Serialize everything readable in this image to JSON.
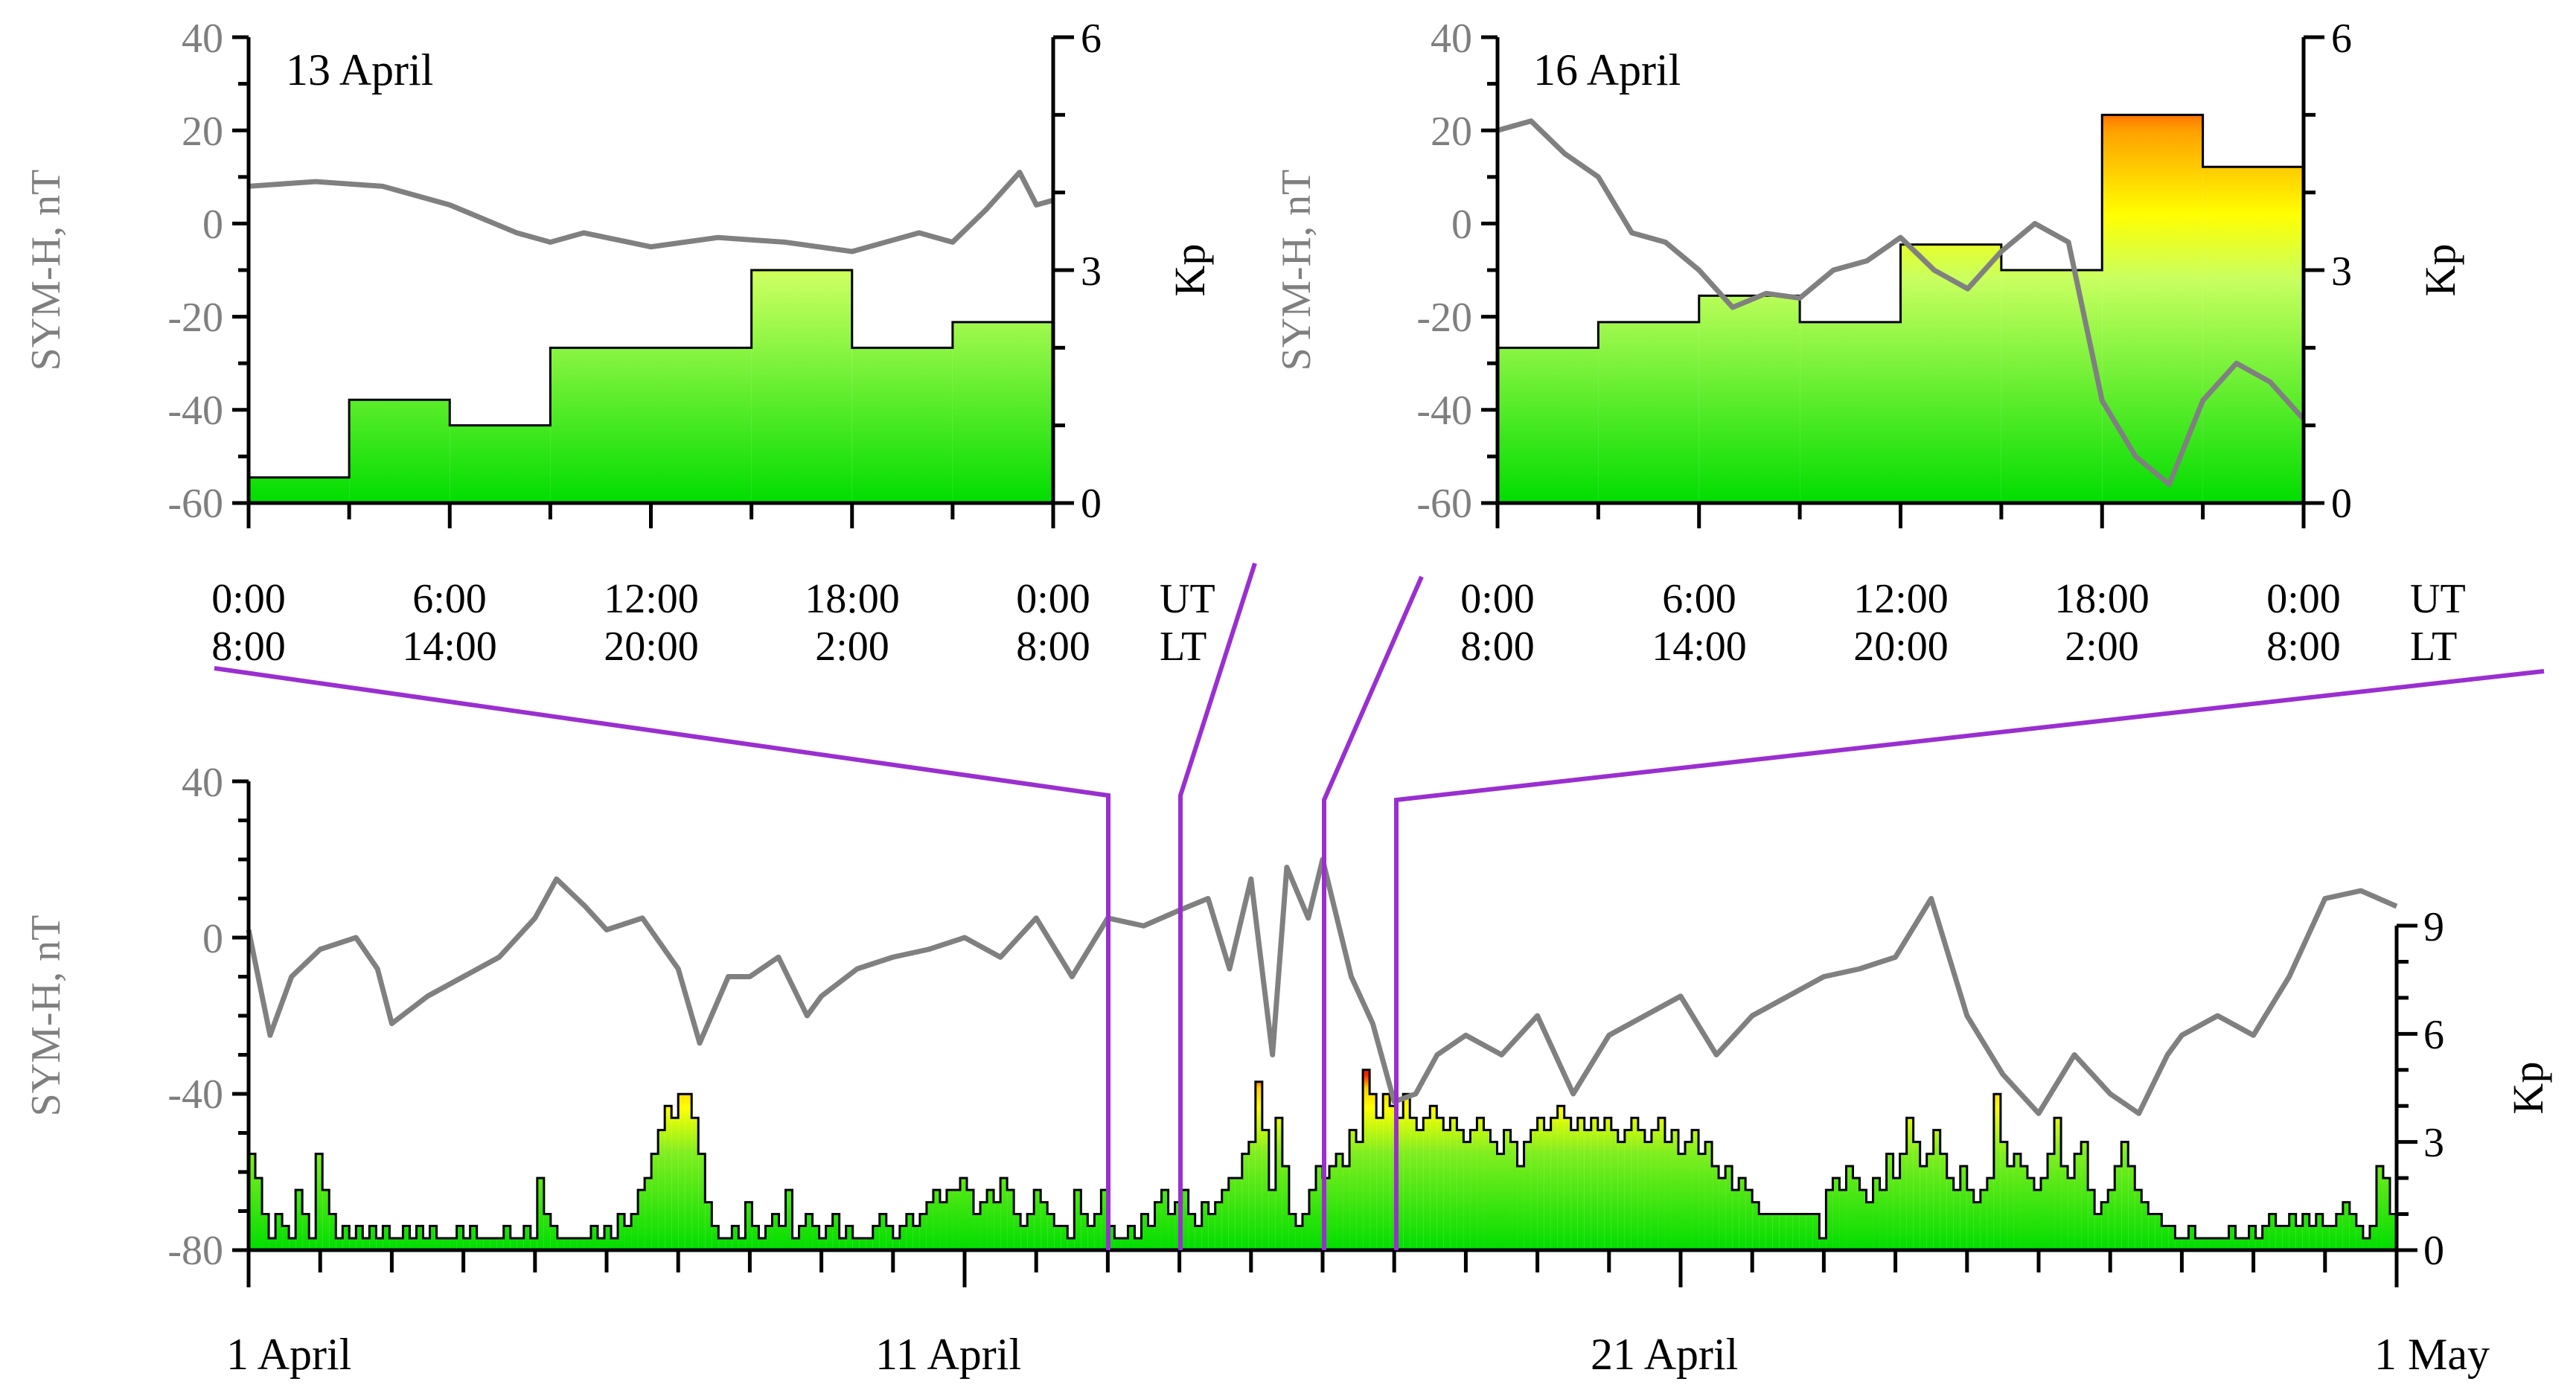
{
  "chart_data": [
    {
      "id": "panel-13-april",
      "type": "line+step-area",
      "title": "13 April",
      "ylabel_left": "SYM-H, nT",
      "ylabel_right": "Kp",
      "ylim_left": [
        -60,
        40
      ],
      "ylim_right": [
        0,
        6
      ],
      "yticks_left": [
        "40",
        "20",
        "0",
        "-20",
        "-40",
        "-60"
      ],
      "yticks_right": [
        "6",
        "3",
        "0"
      ],
      "x_ticks_ut": [
        "0:00",
        "6:00",
        "12:00",
        "18:00",
        "0:00"
      ],
      "x_ticks_lt": [
        "8:00",
        "14:00",
        "20:00",
        "2:00",
        "8:00"
      ],
      "x_unit_ut": "UT",
      "x_unit_lt": "LT",
      "kp_interval_hours": 3,
      "kp_values": [
        0.33,
        1.33,
        1.0,
        2.0,
        2.0,
        3.0,
        2.0,
        2.33
      ],
      "symh_hours": [
        0,
        2,
        4,
        6,
        8,
        9,
        10,
        12,
        14,
        16,
        18,
        19,
        20,
        21,
        22,
        23,
        23.5,
        24
      ],
      "symh_values": [
        8,
        9,
        8,
        4,
        -2,
        -4,
        -2,
        -5,
        -3,
        -4,
        -6,
        -4,
        -2,
        -4,
        3,
        11,
        4,
        5
      ]
    },
    {
      "id": "panel-16-april",
      "type": "line+step-area",
      "title": "16 April",
      "ylabel_left": "SYM-H, nT",
      "ylabel_right": "Kp",
      "ylim_left": [
        -60,
        40
      ],
      "ylim_right": [
        0,
        6
      ],
      "yticks_left": [
        "40",
        "20",
        "0",
        "-20",
        "-40",
        "-60"
      ],
      "yticks_right": [
        "6",
        "3",
        "0"
      ],
      "x_ticks_ut": [
        "0:00",
        "6:00",
        "12:00",
        "18:00",
        "0:00"
      ],
      "x_ticks_lt": [
        "8:00",
        "14:00",
        "20:00",
        "2:00",
        "8:00"
      ],
      "x_unit_ut": "UT",
      "x_unit_lt": "LT",
      "kp_interval_hours": 3,
      "kp_values": [
        2.0,
        2.33,
        2.67,
        2.33,
        3.33,
        3.0,
        5.0,
        4.33
      ],
      "symh_hours": [
        0,
        1,
        2,
        3,
        4,
        5,
        6,
        7,
        8,
        9,
        10,
        11,
        12,
        13,
        14,
        15,
        16,
        17,
        18,
        19,
        20,
        21,
        22,
        23,
        24
      ],
      "symh_values": [
        20,
        22,
        15,
        10,
        -2,
        -4,
        -10,
        -18,
        -15,
        -16,
        -10,
        -8,
        -3,
        -10,
        -14,
        -6,
        0,
        -4,
        -38,
        -50,
        -56,
        -38,
        -30,
        -34,
        -42
      ]
    },
    {
      "id": "panel-april",
      "type": "line+step-area",
      "ylabel_left": "SYM-H, nT",
      "ylabel_right": "Kp",
      "ylim_left": [
        -80,
        40
      ],
      "ylim_right": [
        0,
        9
      ],
      "yticks_left": [
        "40",
        "0",
        "-40",
        "-80"
      ],
      "yticks_right": [
        "9",
        "6",
        "3",
        "0"
      ],
      "x_day_labels": [
        "1 April",
        "11 April",
        "21 April",
        "1 May"
      ],
      "x_range_days": [
        0,
        30
      ],
      "zoom_days": [
        12,
        13,
        15,
        16
      ],
      "kp_values": [
        2.67,
        2.0,
        1.0,
        0.33,
        1.0,
        0.67,
        0.33,
        1.67,
        1.0,
        0.33,
        2.67,
        1.67,
        1.0,
        0.33,
        0.67,
        0.33,
        0.67,
        0.33,
        0.67,
        0.33,
        0.67,
        0.33,
        0.33,
        0.67,
        0.33,
        0.67,
        0.33,
        0.67,
        0.33,
        0.33,
        0.33,
        0.67,
        0.33,
        0.67,
        0.33,
        0.33,
        0.33,
        0.33,
        0.67,
        0.33,
        0.33,
        0.67,
        0.33,
        2.0,
        1.0,
        0.67,
        0.33,
        0.33,
        0.33,
        0.33,
        0.33,
        0.67,
        0.33,
        0.67,
        0.33,
        1.0,
        0.67,
        1.0,
        1.67,
        2.0,
        2.67,
        3.33,
        4.0,
        3.67,
        4.33,
        4.33,
        3.67,
        2.67,
        1.33,
        0.67,
        0.33,
        0.33,
        0.67,
        0.33,
        1.33,
        0.67,
        0.33,
        0.67,
        1.0,
        0.67,
        1.67,
        0.33,
        0.67,
        1.0,
        0.67,
        0.33,
        0.67,
        1.0,
        0.33,
        0.67,
        0.33,
        0.33,
        0.33,
        0.67,
        1.0,
        0.67,
        0.33,
        0.67,
        1.0,
        0.67,
        1.0,
        1.33,
        1.67,
        1.33,
        1.67,
        1.67,
        2.0,
        1.67,
        1.0,
        1.33,
        1.67,
        1.33,
        2.0,
        1.67,
        1.0,
        0.67,
        1.0,
        1.67,
        1.33,
        1.0,
        0.67,
        0.67,
        0.33,
        1.67,
        1.0,
        0.67,
        1.0,
        1.67,
        0.67,
        0.33,
        0.33,
        0.67,
        0.33,
        1.0,
        0.67,
        1.33,
        1.67,
        1.0,
        1.33,
        1.67,
        1.0,
        0.67,
        1.33,
        1.0,
        1.33,
        1.67,
        2.0,
        2.0,
        2.67,
        3.0,
        4.67,
        3.33,
        1.67,
        3.67,
        2.33,
        1.0,
        0.67,
        1.0,
        1.67,
        2.33,
        2.0,
        2.33,
        2.67,
        2.33,
        3.33,
        3.0,
        5.0,
        4.33,
        3.67,
        4.33,
        4.0,
        3.67,
        4.33,
        3.67,
        3.33,
        3.67,
        4.0,
        3.67,
        3.33,
        3.67,
        3.33,
        3.0,
        3.33,
        3.67,
        3.33,
        3.0,
        2.67,
        3.33,
        3.0,
        2.33,
        3.0,
        3.33,
        3.67,
        3.33,
        3.67,
        4.0,
        3.67,
        3.33,
        3.67,
        3.33,
        3.67,
        3.33,
        3.67,
        3.33,
        3.0,
        3.33,
        3.67,
        3.33,
        3.0,
        3.33,
        3.67,
        3.0,
        3.33,
        2.67,
        3.0,
        3.33,
        2.67,
        3.0,
        2.33,
        2.0,
        2.33,
        1.67,
        2.0,
        1.67,
        1.33,
        1.0,
        1.0,
        1.0,
        1.0,
        1.0,
        1.0,
        1.0,
        1.0,
        1.0,
        0.33,
        1.67,
        2.0,
        1.67,
        2.33,
        2.0,
        1.67,
        1.33,
        2.0,
        1.67,
        2.67,
        2.0,
        2.67,
        3.67,
        3.0,
        2.33,
        2.67,
        3.33,
        2.67,
        2.0,
        1.67,
        2.33,
        1.67,
        1.33,
        1.67,
        2.0,
        4.33,
        3.0,
        2.33,
        2.67,
        2.33,
        2.0,
        1.67,
        2.0,
        2.67,
        3.67,
        2.33,
        2.0,
        2.67,
        3.0,
        1.67,
        1.0,
        1.33,
        1.67,
        2.33,
        3.0,
        2.33,
        1.67,
        1.33,
        1.0,
        1.0,
        0.67,
        0.67,
        0.33,
        0.33,
        0.67,
        0.33,
        0.33,
        0.33,
        0.33,
        0.33,
        0.67,
        0.33,
        0.33,
        0.67,
        0.33,
        0.67,
        1.0,
        0.67,
        0.67,
        1.0,
        0.67,
        1.0,
        0.67,
        1.0,
        0.67,
        0.67,
        1.0,
        1.33,
        1.0,
        0.67,
        0.33,
        0.67,
        2.33,
        2.0,
        1.0
      ],
      "symh_days": [
        0,
        0.3,
        0.6,
        1.0,
        1.5,
        1.8,
        2.0,
        2.5,
        3.0,
        3.5,
        4.0,
        4.3,
        4.7,
        5.0,
        5.5,
        6.0,
        6.3,
        6.7,
        7.0,
        7.4,
        7.8,
        8.0,
        8.5,
        9.0,
        9.5,
        10.0,
        10.5,
        11.0,
        11.5,
        12.0,
        12.5,
        13.0,
        13.4,
        13.7,
        14.0,
        14.3,
        14.5,
        14.8,
        15.0,
        15.4,
        15.7,
        16.0,
        16.3,
        16.6,
        17.0,
        17.5,
        18.0,
        18.5,
        19.0,
        19.5,
        20.0,
        20.5,
        21.0,
        21.5,
        22.0,
        22.5,
        23.0,
        23.5,
        24.0,
        24.5,
        25.0,
        25.5,
        26.0,
        26.4,
        26.8,
        27.0,
        27.5,
        28.0,
        28.5,
        29.0,
        29.5,
        30.0
      ],
      "symh_values": [
        2,
        -25,
        -10,
        -3,
        0,
        -8,
        -22,
        -15,
        -10,
        -5,
        5,
        15,
        8,
        2,
        5,
        -8,
        -27,
        -10,
        -10,
        -5,
        -20,
        -15,
        -8,
        -5,
        -3,
        0,
        -5,
        5,
        -10,
        5,
        3,
        7,
        10,
        -8,
        15,
        -30,
        18,
        5,
        20,
        -10,
        -22,
        -42,
        -40,
        -30,
        -25,
        -30,
        -20,
        -40,
        -25,
        -20,
        -15,
        -30,
        -20,
        -15,
        -10,
        -8,
        -5,
        10,
        -20,
        -35,
        -45,
        -30,
        -40,
        -45,
        -30,
        -25,
        -20,
        -25,
        -10,
        10,
        12,
        8
      ]
    }
  ]
}
